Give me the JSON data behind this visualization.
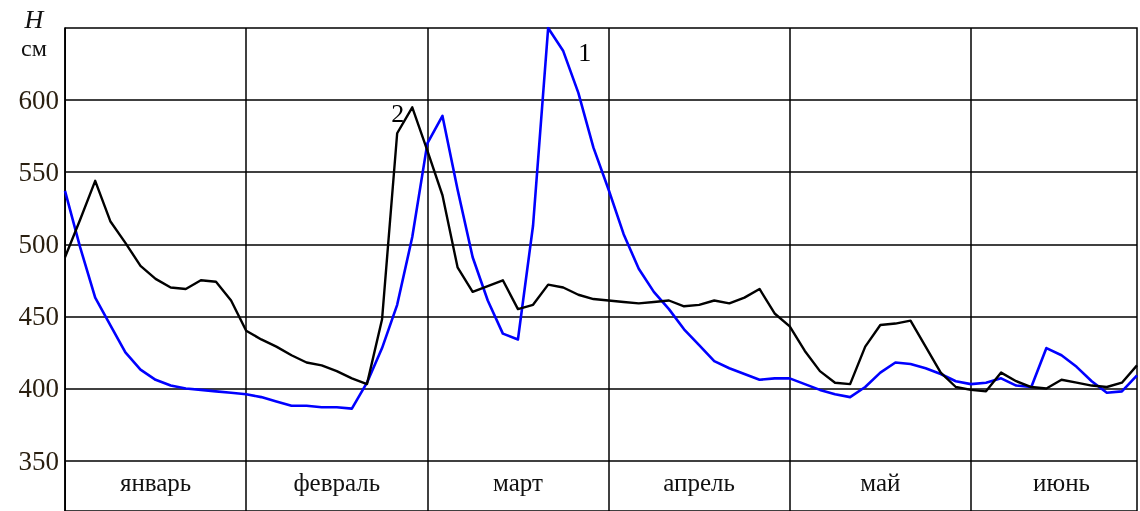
{
  "chart_data": {
    "type": "line",
    "ylabel": "H см",
    "categories": [
      null,
      null,
      null,
      null,
      null,
      null,
      "январь",
      null,
      null,
      null,
      null,
      null,
      null,
      null,
      null,
      null,
      null,
      null,
      "февраль",
      null,
      null,
      null,
      null,
      null,
      null,
      null,
      null,
      null,
      null,
      null,
      "март",
      null,
      null,
      null,
      null,
      null,
      null,
      null,
      null,
      null,
      null,
      null,
      "апрель",
      null,
      null,
      null,
      null,
      null,
      null,
      null,
      null,
      null,
      null,
      null,
      "май",
      null,
      null,
      null,
      null,
      null,
      null,
      null,
      null,
      null,
      null,
      null,
      "июнь",
      null,
      null,
      null,
      null,
      null
    ],
    "ylim": [
      315,
      650
    ],
    "yticks": [
      350,
      400,
      450,
      500,
      550,
      600
    ],
    "grid": true,
    "series": [
      {
        "name": "1",
        "color": "#0000ff",
        "values": [
          537,
          498,
          463,
          444,
          425,
          413,
          406,
          402,
          400,
          399,
          398,
          397,
          396,
          394,
          391,
          388,
          388,
          387,
          387,
          386,
          404,
          428,
          458,
          505,
          570,
          589,
          538,
          491,
          461,
          438,
          434,
          513,
          650,
          634,
          605,
          567,
          538,
          507,
          483,
          467,
          455,
          441,
          430,
          419,
          414,
          410,
          406,
          407,
          407,
          403,
          399,
          396,
          394,
          401,
          411,
          418,
          417,
          414,
          410,
          405,
          403,
          404,
          407,
          402,
          401,
          428,
          423,
          415,
          405,
          397,
          398,
          409
        ]
      },
      {
        "name": "2",
        "color": "#000000",
        "values": [
          491,
          517,
          544,
          516,
          501,
          485,
          476,
          470,
          469,
          475,
          474,
          461,
          440,
          434,
          429,
          423,
          418,
          416,
          412,
          407,
          403,
          448,
          577,
          595,
          565,
          534,
          484,
          467,
          471,
          475,
          455,
          458,
          472,
          470,
          465,
          462,
          461,
          460,
          459,
          460,
          461,
          457,
          458,
          461,
          459,
          463,
          469,
          452,
          443,
          426,
          412,
          404,
          403,
          429,
          444,
          445,
          447,
          429,
          411,
          401,
          399,
          398,
          411,
          405,
          401,
          400,
          406,
          404,
          402,
          401,
          404,
          416
        ]
      }
    ]
  }
}
